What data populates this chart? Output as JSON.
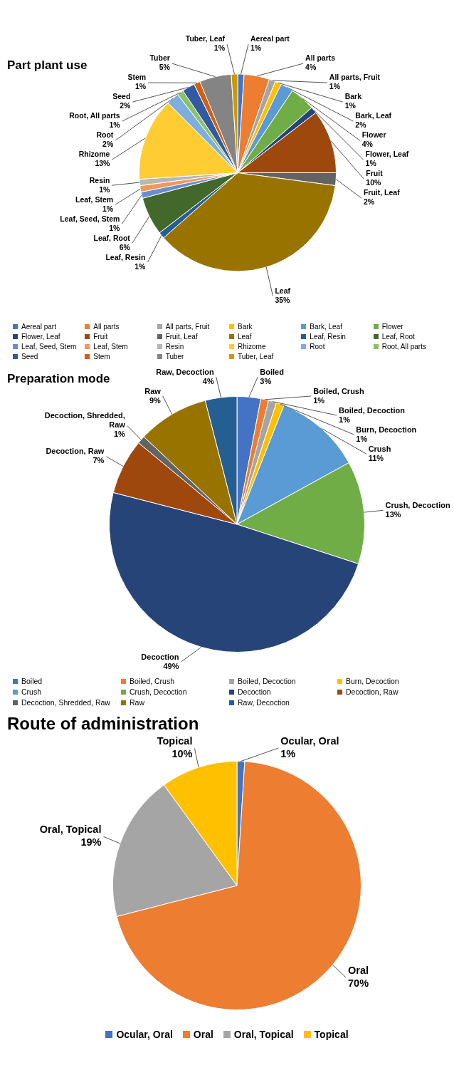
{
  "chart_data": [
    {
      "type": "pie",
      "title": "Part plant use",
      "legend": "bottom",
      "categories": [
        "Aereal part",
        "All parts",
        "All parts, Fruit",
        "Bark",
        "Bark, Leaf",
        "Flower",
        "Flower, Leaf",
        "Fruit",
        "Fruit, Leaf",
        "Leaf",
        "Leaf, Resin",
        "Leaf, Root",
        "Leaf, Seed, Stem",
        "Leaf, Stem",
        "Resin",
        "Rhizome",
        "Root",
        "Root, All parts",
        "Seed",
        "Stem",
        "Tuber",
        "Tuber, Leaf"
      ],
      "values": [
        1,
        4,
        1,
        1,
        2,
        4,
        1,
        10,
        2,
        35,
        1,
        6,
        1,
        1,
        1,
        13,
        2,
        1,
        2,
        1,
        5,
        1
      ],
      "value_labels": [
        "1%",
        "4%",
        "1%",
        "1%",
        "2%",
        "4%",
        "1%",
        "10%",
        "2%",
        "35%",
        "1%",
        "6%",
        "1%",
        "1%",
        "1%",
        "13%",
        "2%",
        "1%",
        "2%",
        "1%",
        "5%",
        "1%"
      ],
      "colors": [
        "#4472c4",
        "#ed7d31",
        "#a5a5a5",
        "#ffc000",
        "#5b9bd5",
        "#70ad47",
        "#264478",
        "#9e480e",
        "#636363",
        "#997300",
        "#255e91",
        "#43682b",
        "#698ed0",
        "#f1975a",
        "#b7b7b7",
        "#ffcd33",
        "#7cafdd",
        "#8cc168",
        "#335aa1",
        "#d26012",
        "#848484",
        "#cc9a00"
      ]
    },
    {
      "type": "pie",
      "title": "Preparation mode",
      "legend": "bottom",
      "categories": [
        "Boiled",
        "Boiled, Crush",
        "Boiled, Decoction",
        "Burn, Decoction",
        "Crush",
        "Crush, Decoction",
        "Decoction",
        "Decoction, Raw",
        "Decoction, Shredded, Raw",
        "Raw",
        "Raw, Decoction"
      ],
      "values": [
        3,
        1,
        1,
        1,
        11,
        13,
        49,
        7,
        1,
        9,
        4
      ],
      "value_labels": [
        "3%",
        "1%",
        "1%",
        "1%",
        "11%",
        "13%",
        "49%",
        "7%",
        "1%",
        "9%",
        "4%"
      ],
      "colors": [
        "#4472c4",
        "#ed7d31",
        "#a5a5a5",
        "#ffc000",
        "#5b9bd5",
        "#70ad47",
        "#264478",
        "#9e480e",
        "#636363",
        "#997300",
        "#255e91"
      ]
    },
    {
      "type": "pie",
      "title": "Route of administration",
      "legend": "bottom",
      "categories": [
        "Ocular, Oral",
        "Oral",
        "Oral, Topical",
        "Topical"
      ],
      "values": [
        1,
        70,
        19,
        10
      ],
      "value_labels": [
        "1%",
        "70%",
        "19%",
        "10%"
      ],
      "colors": [
        "#4472c4",
        "#ed7d31",
        "#a5a5a5",
        "#ffc000"
      ]
    }
  ]
}
